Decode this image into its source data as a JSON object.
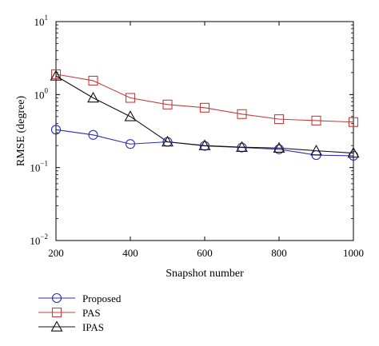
{
  "chart_data": {
    "type": "line",
    "title": "",
    "xlabel": "Snapshot number",
    "ylabel": "RMSE (degree)",
    "xlim": [
      200,
      1000
    ],
    "ylim": [
      0.01,
      10
    ],
    "yscale": "log",
    "grid": false,
    "legend_position": "bottom-left, below plot",
    "x_ticks": [
      {
        "value": 200,
        "label": "200"
      },
      {
        "value": 400,
        "label": "400"
      },
      {
        "value": 600,
        "label": "600"
      },
      {
        "value": 800,
        "label": "800"
      },
      {
        "value": 1000,
        "label": "1000"
      }
    ],
    "y_ticks": [
      {
        "value": 0.01,
        "base": "10",
        "exp": "−2"
      },
      {
        "value": 0.1,
        "base": "10",
        "exp": "−1"
      },
      {
        "value": 1,
        "base": "10",
        "exp": "0"
      },
      {
        "value": 10,
        "base": "10",
        "exp": "1"
      }
    ],
    "x": [
      200,
      300,
      400,
      500,
      600,
      700,
      800,
      900,
      1000
    ],
    "series": [
      {
        "name": "Proposed",
        "marker": "circle",
        "color": "#2b2bb5",
        "values": [
          0.33,
          0.28,
          0.21,
          0.225,
          0.198,
          0.188,
          0.178,
          0.148,
          0.145
        ]
      },
      {
        "name": "PAS",
        "marker": "square",
        "color": "#c83c3c",
        "values": [
          1.9,
          1.55,
          0.9,
          0.73,
          0.66,
          0.54,
          0.46,
          0.44,
          0.42
        ]
      },
      {
        "name": "IPAS",
        "marker": "triangle",
        "color": "#111111",
        "values": [
          1.8,
          0.9,
          0.5,
          0.225,
          0.2,
          0.19,
          0.185,
          0.17,
          0.158
        ]
      }
    ]
  }
}
